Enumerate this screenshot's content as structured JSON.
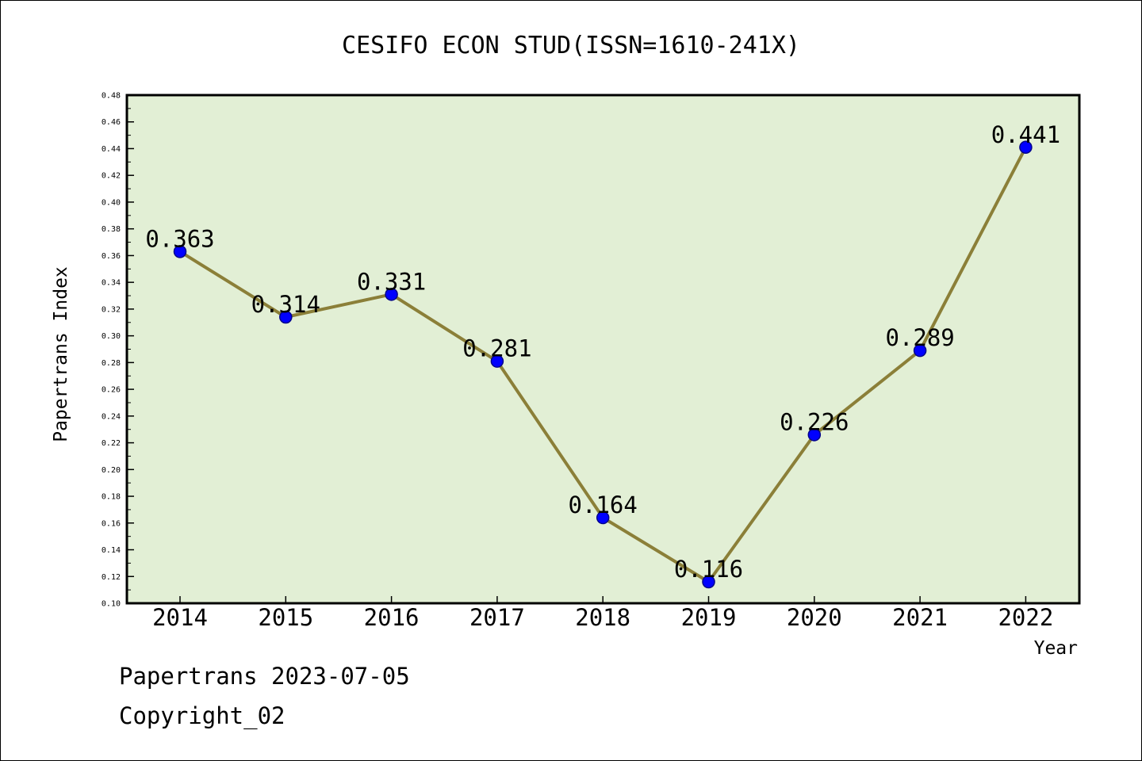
{
  "chart_data": {
    "type": "line",
    "title": "CESIFO ECON STUD(ISSN=1610-241X)",
    "xlabel": "Year",
    "ylabel": "Papertrans Index",
    "categories": [
      "2014",
      "2015",
      "2016",
      "2017",
      "2018",
      "2019",
      "2020",
      "2021",
      "2022"
    ],
    "values": [
      0.363,
      0.314,
      0.331,
      0.281,
      0.164,
      0.116,
      0.226,
      0.289,
      0.441
    ],
    "data_labels": [
      "0.363",
      "0.314",
      "0.331",
      "0.281",
      "0.164",
      "0.116",
      "0.226",
      "0.289",
      "0.441"
    ],
    "ylim": [
      0.1,
      0.48
    ],
    "yticks": [
      "0.10",
      "0.12",
      "0.14",
      "0.16",
      "0.18",
      "0.20",
      "0.22",
      "0.24",
      "0.26",
      "0.28",
      "0.30",
      "0.32",
      "0.34",
      "0.36",
      "0.38",
      "0.40",
      "0.42",
      "0.44",
      "0.46",
      "0.48"
    ],
    "grid": false,
    "legend": "none",
    "colors": {
      "plot_background": "#E2EFD5",
      "line": "#8B7F38",
      "marker": "#0000FF",
      "marker_edge": "#00008B",
      "axes": "#000000"
    }
  },
  "footer": {
    "line1": "Papertrans 2023-07-05",
    "line2": "Copyright_02"
  }
}
